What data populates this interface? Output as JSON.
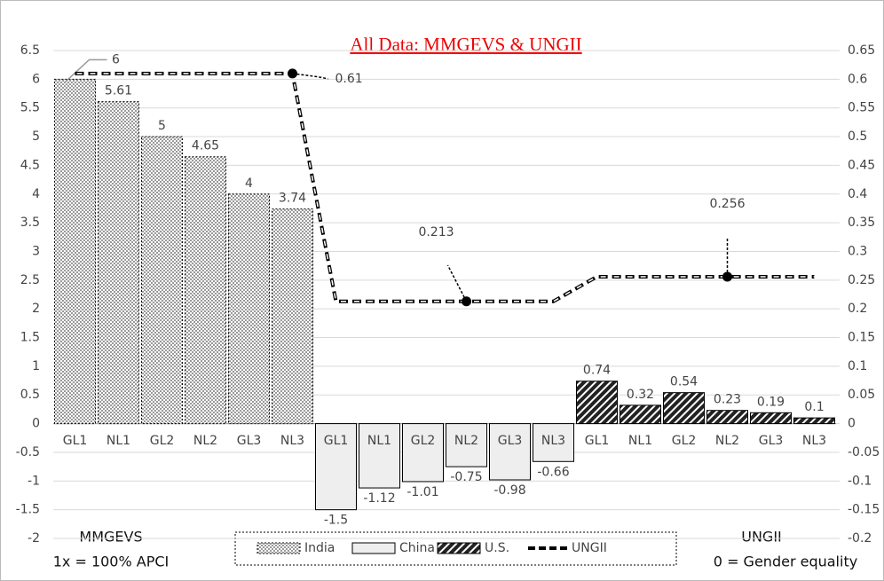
{
  "chart_data": {
    "type": "bar",
    "title": "All Data: MMGEVS & UNGII",
    "y_axis_label": [
      "MMGEVS",
      "1x = 100% APCI"
    ],
    "y2_axis_label": [
      "UNGII",
      "0 = Gender equality"
    ],
    "categories": [
      "GL1",
      "NL1",
      "GL2",
      "NL2",
      "GL3",
      "NL3",
      "GL1",
      "NL1",
      "GL2",
      "NL2",
      "GL3",
      "NL3",
      "GL1",
      "NL1",
      "GL2",
      "NL2",
      "GL3",
      "NL3"
    ],
    "series": [
      {
        "name": "India",
        "color": "#9a9a9a",
        "pattern": "dots",
        "values": [
          6,
          5.61,
          5,
          4.65,
          4,
          3.74,
          null,
          null,
          null,
          null,
          null,
          null,
          null,
          null,
          null,
          null,
          null,
          null
        ]
      },
      {
        "name": "China",
        "color": "#eeeeee",
        "pattern": "solid",
        "values": [
          null,
          null,
          null,
          null,
          null,
          null,
          -1.5,
          -1.12,
          -1.01,
          -0.75,
          -0.98,
          -0.66,
          null,
          null,
          null,
          null,
          null,
          null
        ]
      },
      {
        "name": "U.S.",
        "color": "#222222",
        "pattern": "hatch",
        "values": [
          null,
          null,
          null,
          null,
          null,
          null,
          null,
          null,
          null,
          null,
          null,
          null,
          0.74,
          0.32,
          0.54,
          0.23,
          0.19,
          0.1
        ]
      },
      {
        "name": "UNGII",
        "color": "#000000",
        "type": "line",
        "axis": "y2",
        "labeled_points": [
          5,
          9,
          15
        ],
        "values": [
          0.61,
          0.61,
          0.61,
          0.61,
          0.61,
          0.61,
          0.213,
          0.213,
          0.213,
          0.213,
          0.213,
          0.213,
          0.256,
          0.256,
          0.256,
          0.256,
          0.256,
          0.256
        ]
      }
    ],
    "ylim": [
      -2,
      6.5
    ],
    "yticks": [
      -2,
      -1.5,
      -1,
      -0.5,
      0,
      0.5,
      1,
      1.5,
      2,
      2.5,
      3,
      3.5,
      4,
      4.5,
      5,
      5.5,
      6,
      6.5
    ],
    "y2lim": [
      -0.2,
      0.65
    ],
    "y2ticks": [
      -0.2,
      -0.15,
      -0.1,
      -0.05,
      0,
      0.05,
      0.1,
      0.15,
      0.2,
      0.25,
      0.3,
      0.35,
      0.4,
      0.45,
      0.5,
      0.55,
      0.6,
      0.65
    ],
    "grid": true,
    "legend": "bottom"
  }
}
